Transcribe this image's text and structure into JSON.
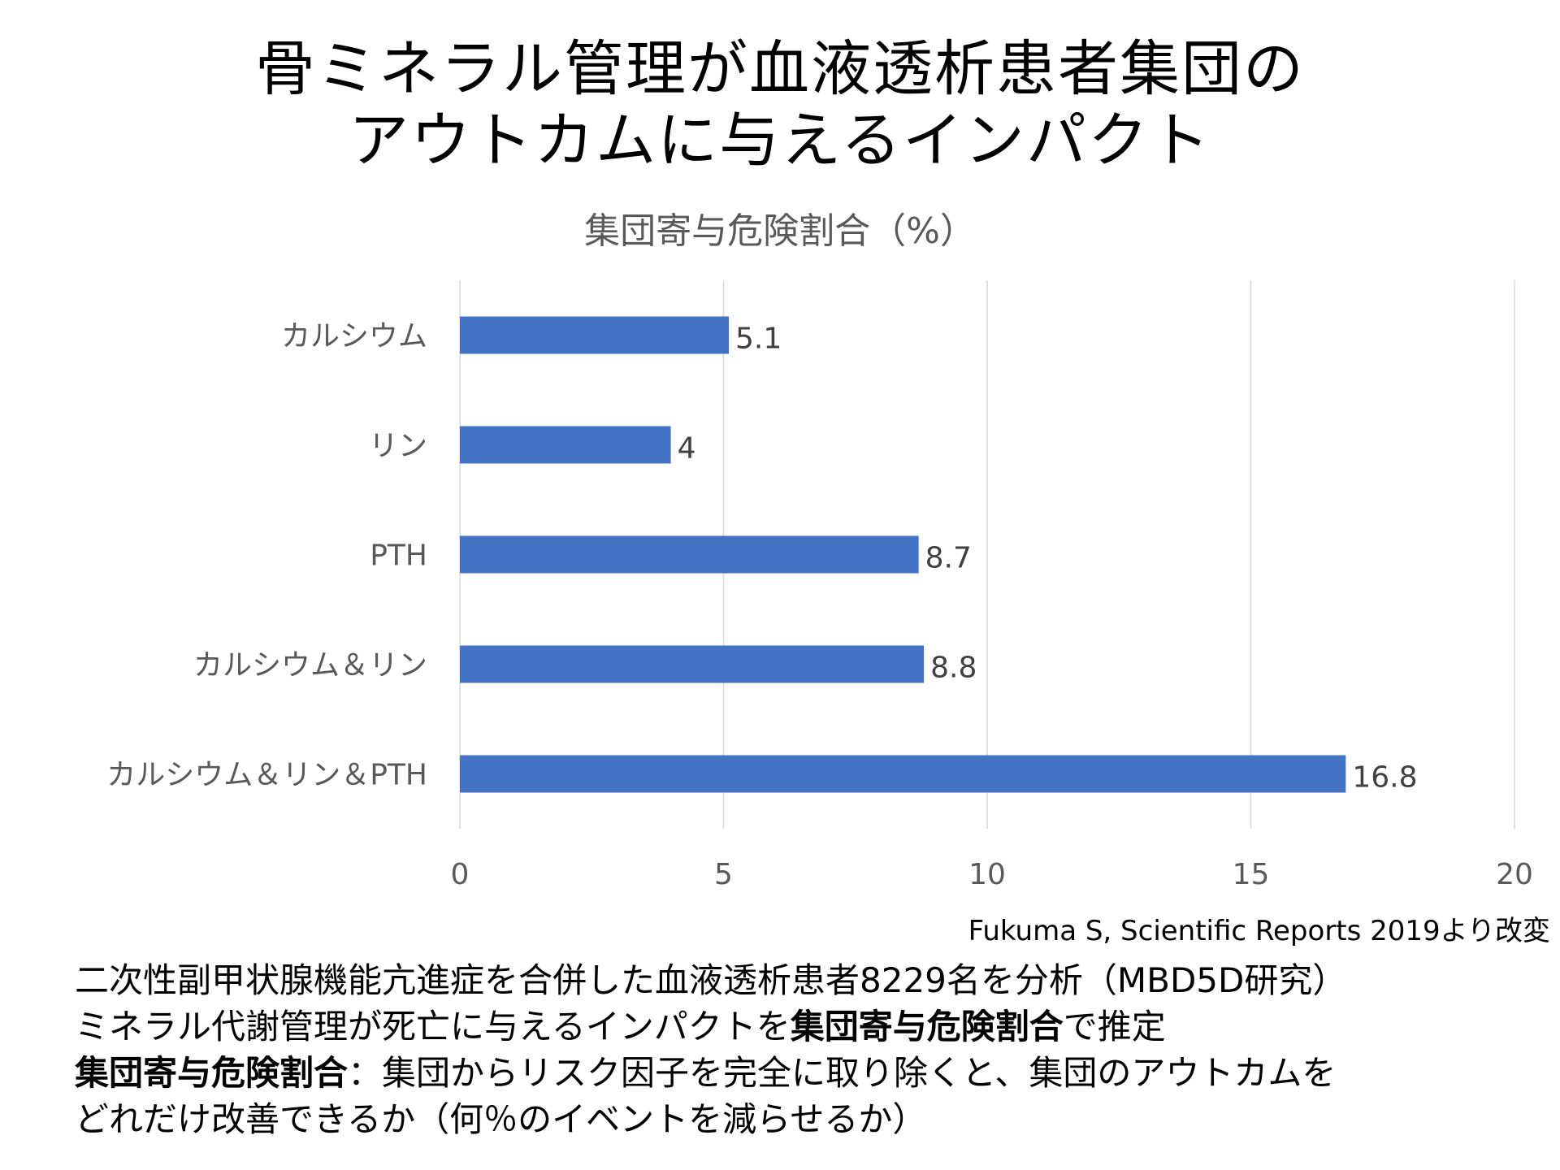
{
  "title": {
    "line1": "骨ミネラル管理が血液透析患者集団の",
    "line2": "アウトカムに与えるインパクト"
  },
  "chart_data": {
    "type": "bar",
    "orientation": "horizontal",
    "title": "集団寄与危険割合（%）",
    "categories": [
      "カルシウム",
      "リン",
      "PTH",
      "カルシウム＆リン",
      "カルシウム＆リン＆PTH"
    ],
    "values": [
      5.1,
      4,
      8.7,
      8.8,
      16.8
    ],
    "data_labels": [
      "5.1",
      "4",
      "8.7",
      "8.8",
      "16.8"
    ],
    "xlim": [
      0,
      20
    ],
    "x_ticks": [
      "0",
      "5",
      "10",
      "15",
      "20"
    ],
    "grid": true,
    "bar_color": "#4472C4"
  },
  "source": "Fukuma S, Scientific Reports 2019より改変",
  "notes": {
    "line1": "二次性副甲状腺機能亢進症を合併した血液透析患者8229名を分析（MBD5D研究）",
    "line2_pre": "ミネラル代謝管理が死亡に与えるインパクトを",
    "line2_bold": "集団寄与危険割合",
    "line2_post": "で推定",
    "line3_bold": "集団寄与危険割合",
    "line3_rest": "：集団からリスク因子を完全に取り除くと、集団のアウトカムを",
    "line4": "どれだけ改善できるか（何％のイベントを減らせるか）"
  }
}
